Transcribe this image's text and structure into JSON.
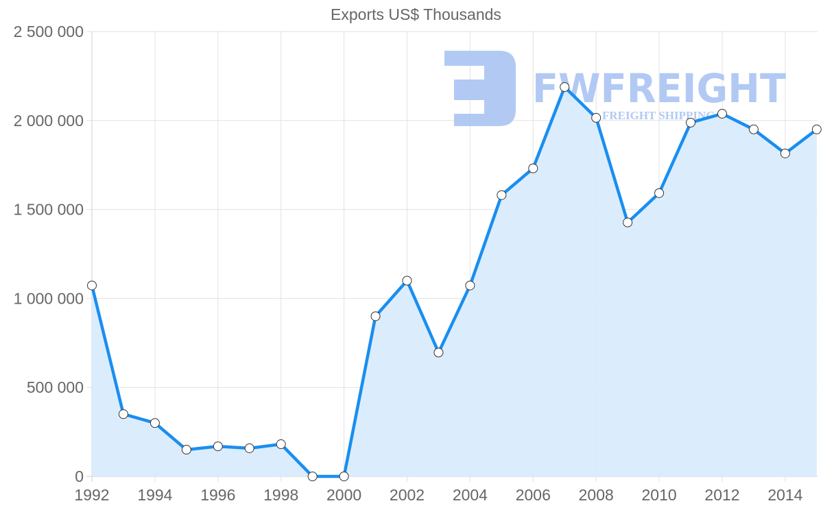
{
  "chart_data": {
    "type": "area",
    "title": "Exports US$ Thousands",
    "xlabel": "",
    "ylabel": "",
    "x": [
      1992,
      1993,
      1994,
      1995,
      1996,
      1997,
      1998,
      1999,
      2000,
      2001,
      2002,
      2003,
      2004,
      2005,
      2006,
      2007,
      2008,
      2009,
      2010,
      2011,
      2012,
      2013,
      2014,
      2015
    ],
    "series": [
      {
        "name": "Exports US$ Thousands",
        "values": [
          1073000,
          350000,
          300000,
          150000,
          169000,
          158000,
          181000,
          0,
          0,
          900000,
          1100000,
          696000,
          1073000,
          1581000,
          1731000,
          2188000,
          2015000,
          1427000,
          1592000,
          1988000,
          2038000,
          1950000,
          1815000,
          1950000
        ]
      }
    ],
    "ylim": [
      0,
      2500000
    ],
    "yticks": [
      0,
      500000,
      1000000,
      1500000,
      2000000,
      2500000
    ],
    "ytick_labels": [
      "0",
      "500 000",
      "1 000 000",
      "1 500 000",
      "2 000 000",
      "2 500 000"
    ],
    "xtick_labels": [
      "1992",
      "1994",
      "1996",
      "1998",
      "2000",
      "2002",
      "2004",
      "2006",
      "2008",
      "2010",
      "2012",
      "2014"
    ],
    "grid": true,
    "legend": "none",
    "colors": {
      "line": "#1a8ef0",
      "fill": "#d9ecfd",
      "point_fill": "#ffffff",
      "point_stroke": "#333333",
      "grid": "#e2e2e2",
      "text": "#666666"
    }
  },
  "watermark": {
    "brand": "FWFREIGHT",
    "tagline": "FREIGHT SHIPPING",
    "color": "#aac4f2"
  }
}
